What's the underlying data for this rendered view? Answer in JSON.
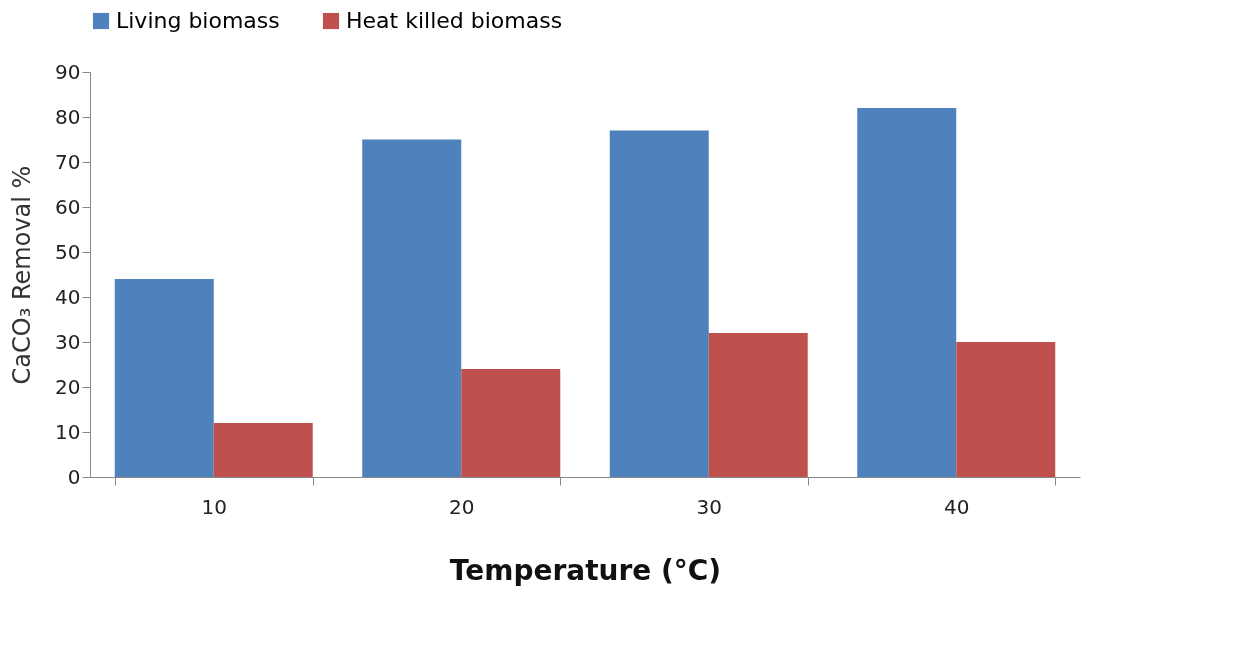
{
  "chart_data": {
    "type": "bar",
    "xlabel": "Temperature (°C)",
    "ylabel": "CaCO₃ Removal %",
    "categories": [
      "10",
      "20",
      "30",
      "40"
    ],
    "series": [
      {
        "name": "Living biomass",
        "color": "#4f81bd",
        "values": [
          44,
          75,
          77,
          82
        ]
      },
      {
        "name": "Heat killed biomass",
        "color": "#c0504d",
        "values": [
          12,
          24,
          32,
          30
        ]
      }
    ],
    "ylim": [
      0,
      90
    ],
    "yticks": [
      0,
      10,
      20,
      30,
      40,
      50,
      60,
      70,
      80,
      90
    ],
    "legend": "top"
  }
}
